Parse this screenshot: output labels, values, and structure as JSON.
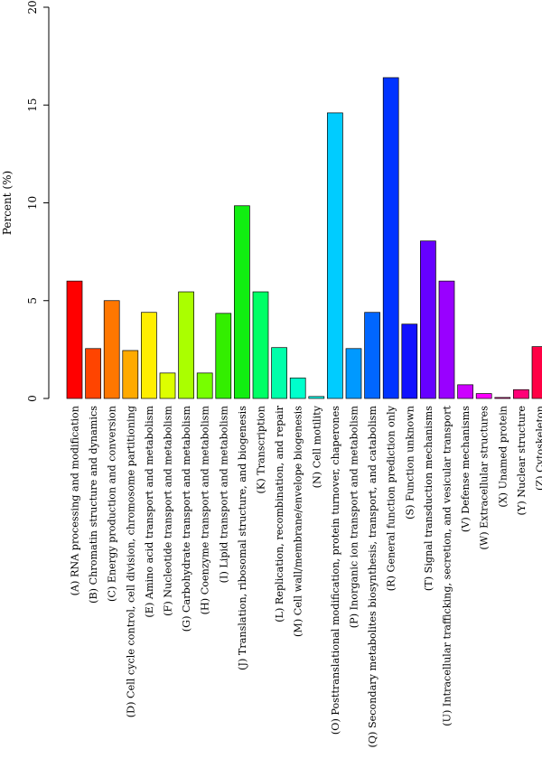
{
  "chart_data": {
    "type": "bar",
    "title": "",
    "xlabel": "",
    "ylabel": "Percent (%)",
    "ylim": [
      0,
      20
    ],
    "yticks": [
      0,
      5,
      10,
      15,
      20
    ],
    "grid": false,
    "legend": "none",
    "categories": [
      "(A) RNA processing and modification",
      "(B) Chromatin structure and dynamics",
      "(C) Energy production and conversion",
      "(D) Cell cycle control, cell division, chromosome partitioning",
      "(E) Amino acid transport and metabolism",
      "(F) Nucleotide transport and metabolism",
      "(G) Carbohydrate transport and metabolism",
      "(H) Coenzyme transport and metabolism",
      "(I) Lipid transport and metabolism",
      "(J) Translation, ribosomal structure, and biogenesis",
      "(K) Transcription",
      "(L) Replication, recombination, and repair",
      "(M) Cell wall/membrane/envelope biogenesis",
      "(N) Cell motility",
      "(O) Posttranslational modification, protein turnover, chaperones",
      "(P) Inorganic ion transport and metabolism",
      "(Q) Secondary metabolites biosynthesis, transport, and catabolism",
      "(R) General function prediction only",
      "(S) Function unknown",
      "(T) Signal transduction mechanisms",
      "(U) Intracellular trafficking, secretion, and vesicular transport",
      "(V) Defense mechanisms",
      "(W) Extracellular structures",
      "(X) Unamed protein",
      "(Y) Nuclear structure",
      "(Z) Cytoskeleton"
    ],
    "values": [
      6.0,
      2.55,
      5.0,
      2.45,
      4.4,
      1.3,
      5.45,
      1.3,
      4.35,
      9.85,
      5.45,
      2.6,
      1.05,
      0.1,
      14.6,
      2.55,
      4.4,
      16.4,
      3.8,
      8.05,
      6.0,
      0.7,
      0.25,
      0.05,
      0.45,
      2.65
    ],
    "colors": [
      "#ff0000",
      "#ff4400",
      "#ff7700",
      "#ffaa00",
      "#ffee00",
      "#ddff00",
      "#aaff00",
      "#77ff00",
      "#33ee00",
      "#11ee11",
      "#00ff66",
      "#00ffaa",
      "#00ffcc",
      "#00ffee",
      "#00ccff",
      "#0099ff",
      "#0066ff",
      "#0033ff",
      "#1111ff",
      "#6600ff",
      "#9900ff",
      "#cc00ff",
      "#ff00ff",
      "#ff0099",
      "#ff0077",
      "#ff0044"
    ]
  }
}
